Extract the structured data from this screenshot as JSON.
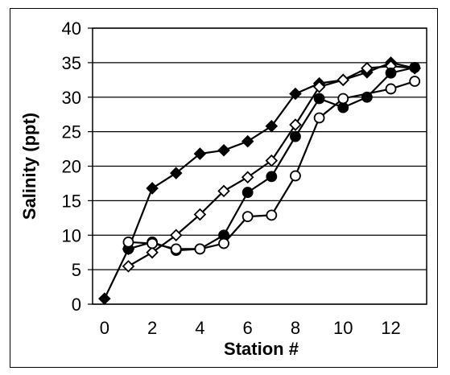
{
  "chart_data": {
    "type": "line",
    "title": "",
    "xlabel": "Station #",
    "ylabel": "Salinity (ppt)",
    "xlim": [
      -0.5,
      13.5
    ],
    "ylim": [
      0,
      40
    ],
    "x_ticks": [
      0,
      2,
      4,
      6,
      8,
      10,
      12
    ],
    "y_ticks": [
      0,
      5,
      10,
      15,
      20,
      25,
      30,
      35,
      40
    ],
    "grid": "horizontal",
    "legend": "none",
    "series": [
      {
        "marker": "filled-diamond",
        "color": "#000000",
        "points": [
          [
            0,
            0.8
          ],
          [
            1,
            8
          ],
          [
            2,
            16.8
          ],
          [
            3,
            19
          ],
          [
            4,
            21.8
          ],
          [
            5,
            22.3
          ],
          [
            6,
            23.6
          ],
          [
            7,
            25.8
          ],
          [
            8,
            30.5
          ],
          [
            9,
            32
          ],
          [
            10,
            32.5
          ],
          [
            11,
            33.6
          ],
          [
            12,
            35
          ],
          [
            13,
            34.2
          ]
        ]
      },
      {
        "marker": "open-diamond",
        "color": "#000000",
        "points": [
          [
            1,
            5.5
          ],
          [
            2,
            7.5
          ],
          [
            3,
            10
          ],
          [
            4,
            13
          ],
          [
            5,
            16.4
          ],
          [
            6,
            18.4
          ],
          [
            7,
            20.8
          ],
          [
            8,
            26
          ],
          [
            9,
            31.5
          ],
          [
            10,
            32.5
          ],
          [
            11,
            34.2
          ],
          [
            12,
            34.5
          ],
          [
            13,
            34.2
          ]
        ]
      },
      {
        "marker": "filled-circle",
        "color": "#000000",
        "points": [
          [
            1,
            8
          ],
          [
            2,
            9
          ],
          [
            3,
            7.8
          ],
          [
            4,
            8
          ],
          [
            5,
            10
          ],
          [
            6,
            16.2
          ],
          [
            7,
            18.5
          ],
          [
            8,
            24.3
          ],
          [
            9,
            29.8
          ],
          [
            10,
            28.5
          ],
          [
            11,
            30
          ],
          [
            12,
            33.5
          ],
          [
            13,
            34.3
          ]
        ]
      },
      {
        "marker": "open-circle",
        "color": "#000000",
        "points": [
          [
            1,
            9
          ],
          [
            2,
            8.8
          ],
          [
            3,
            8
          ],
          [
            4,
            8
          ],
          [
            5,
            8.8
          ],
          [
            6,
            12.7
          ],
          [
            7,
            12.9
          ],
          [
            8,
            18.6
          ],
          [
            9,
            27
          ],
          [
            10,
            29.8
          ],
          [
            12,
            31.2
          ],
          [
            13,
            32.3
          ]
        ]
      }
    ]
  }
}
